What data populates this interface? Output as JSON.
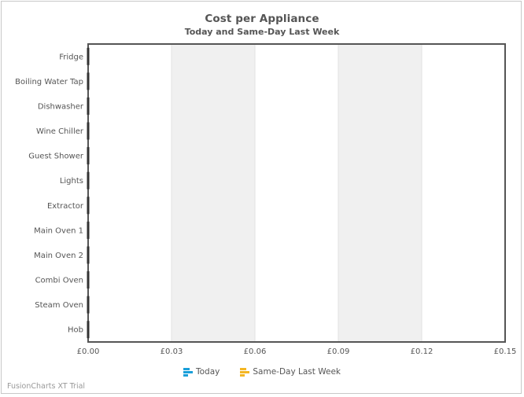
{
  "chart_data": {
    "type": "bar",
    "orientation": "horizontal",
    "title": "Cost per Appliance",
    "subtitle": "Today and Same-Day Last Week",
    "categories": [
      "Fridge",
      "Boiling Water Tap",
      "Dishwasher",
      "Wine Chiller",
      "Guest Shower",
      "Lights",
      "Extractor",
      "Main Oven 1",
      "Main Oven 2",
      "Combi Oven",
      "Steam Oven",
      "Hob"
    ],
    "series": [
      {
        "name": "Today",
        "values": [
          0,
          0,
          0,
          0,
          0,
          0,
          0,
          0,
          0,
          0,
          0,
          0
        ],
        "color": "#1a9fd9"
      },
      {
        "name": "Same-Day Last Week",
        "values": [
          0,
          0,
          0,
          0,
          0,
          0,
          0,
          0,
          0,
          0,
          0,
          0
        ],
        "color": "#f4b623"
      }
    ],
    "x_ticks": [
      "£0.00",
      "£0.03",
      "£0.06",
      "£0.09",
      "£0.12",
      "£0.15"
    ],
    "xlim": [
      0,
      0.15
    ],
    "grid": "alternating vertical bands",
    "legend_position": "bottom-center",
    "plot_bg": "#ffffff",
    "band_color": "#f0f0f0",
    "axis_color": "#555555"
  },
  "watermark": "FusionCharts XT Trial"
}
